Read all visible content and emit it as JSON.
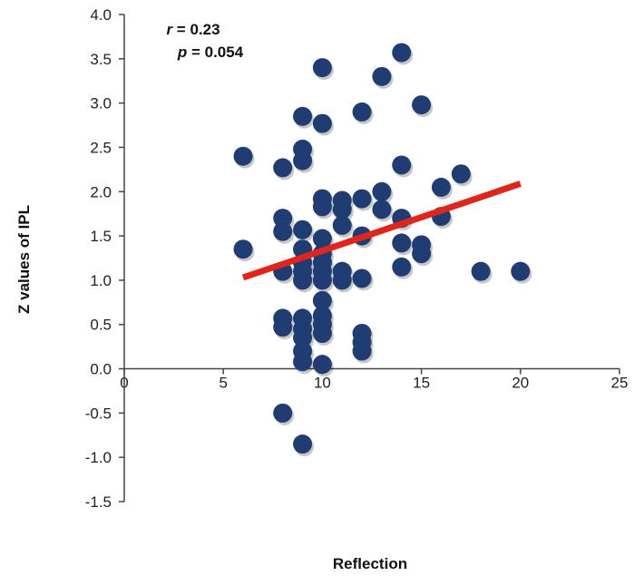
{
  "chart_data": {
    "type": "scatter",
    "xlabel": "Reflection",
    "ylabel": "Z values of IPL",
    "xlim": [
      0,
      25
    ],
    "ylim": [
      -1.5,
      4.0
    ],
    "x_ticks": [
      "0",
      "5",
      "10",
      "15",
      "20",
      "25"
    ],
    "y_ticks": [
      "-1.5",
      "-1.0",
      "-0.5",
      "0.0",
      "0.5",
      "1.0",
      "1.5",
      "2.0",
      "2.5",
      "3.0",
      "3.5",
      "4.0"
    ],
    "grid": false,
    "annotations": {
      "r_symbol": "r",
      "r_value": " = 0.23",
      "p_symbol": "p",
      "p_value": " = 0.054"
    },
    "colors": {
      "points": "#1f3c73",
      "trend": "#e0261c",
      "axis": "#444444"
    },
    "trend_line": {
      "x": [
        6,
        20
      ],
      "y": [
        1.03,
        2.09
      ]
    },
    "points": [
      {
        "x": 6,
        "y": 2.4
      },
      {
        "x": 6,
        "y": 1.35
      },
      {
        "x": 8,
        "y": 2.27
      },
      {
        "x": 8,
        "y": 1.7
      },
      {
        "x": 8,
        "y": 1.55
      },
      {
        "x": 8,
        "y": 1.1
      },
      {
        "x": 8,
        "y": 0.57
      },
      {
        "x": 8,
        "y": 0.47
      },
      {
        "x": 8,
        "y": -0.5
      },
      {
        "x": 9,
        "y": 2.85
      },
      {
        "x": 9,
        "y": 2.48
      },
      {
        "x": 9,
        "y": 2.35
      },
      {
        "x": 9,
        "y": 1.57
      },
      {
        "x": 9,
        "y": 1.35
      },
      {
        "x": 9,
        "y": 1.2
      },
      {
        "x": 9,
        "y": 1.1
      },
      {
        "x": 9,
        "y": 1.0
      },
      {
        "x": 9,
        "y": 0.57
      },
      {
        "x": 9,
        "y": 0.45
      },
      {
        "x": 9,
        "y": 0.35
      },
      {
        "x": 9,
        "y": 0.2
      },
      {
        "x": 9,
        "y": 0.08
      },
      {
        "x": 9,
        "y": -0.85
      },
      {
        "x": 10,
        "y": 3.4
      },
      {
        "x": 10,
        "y": 2.77
      },
      {
        "x": 10,
        "y": 1.92
      },
      {
        "x": 10,
        "y": 1.83
      },
      {
        "x": 10,
        "y": 1.47
      },
      {
        "x": 10,
        "y": 1.3
      },
      {
        "x": 10,
        "y": 1.2
      },
      {
        "x": 10,
        "y": 1.1
      },
      {
        "x": 10,
        "y": 1.0
      },
      {
        "x": 10,
        "y": 0.77
      },
      {
        "x": 10,
        "y": 0.6
      },
      {
        "x": 10,
        "y": 0.5
      },
      {
        "x": 10,
        "y": 0.4
      },
      {
        "x": 10,
        "y": 0.05
      },
      {
        "x": 11,
        "y": 1.9
      },
      {
        "x": 11,
        "y": 1.8
      },
      {
        "x": 11,
        "y": 1.62
      },
      {
        "x": 11,
        "y": 1.1
      },
      {
        "x": 11,
        "y": 1.0
      },
      {
        "x": 12,
        "y": 2.9
      },
      {
        "x": 12,
        "y": 1.92
      },
      {
        "x": 12,
        "y": 1.5
      },
      {
        "x": 12,
        "y": 1.02
      },
      {
        "x": 12,
        "y": 0.4
      },
      {
        "x": 12,
        "y": 0.3
      },
      {
        "x": 12,
        "y": 0.2
      },
      {
        "x": 13,
        "y": 3.3
      },
      {
        "x": 13,
        "y": 2.0
      },
      {
        "x": 13,
        "y": 1.8
      },
      {
        "x": 14,
        "y": 3.57
      },
      {
        "x": 14,
        "y": 2.3
      },
      {
        "x": 14,
        "y": 1.7
      },
      {
        "x": 14,
        "y": 1.42
      },
      {
        "x": 14,
        "y": 1.15
      },
      {
        "x": 15,
        "y": 2.98
      },
      {
        "x": 15,
        "y": 1.4
      },
      {
        "x": 15,
        "y": 1.3
      },
      {
        "x": 16,
        "y": 2.05
      },
      {
        "x": 16,
        "y": 1.72
      },
      {
        "x": 17,
        "y": 2.2
      },
      {
        "x": 18,
        "y": 1.1
      },
      {
        "x": 20,
        "y": 1.1
      }
    ]
  }
}
